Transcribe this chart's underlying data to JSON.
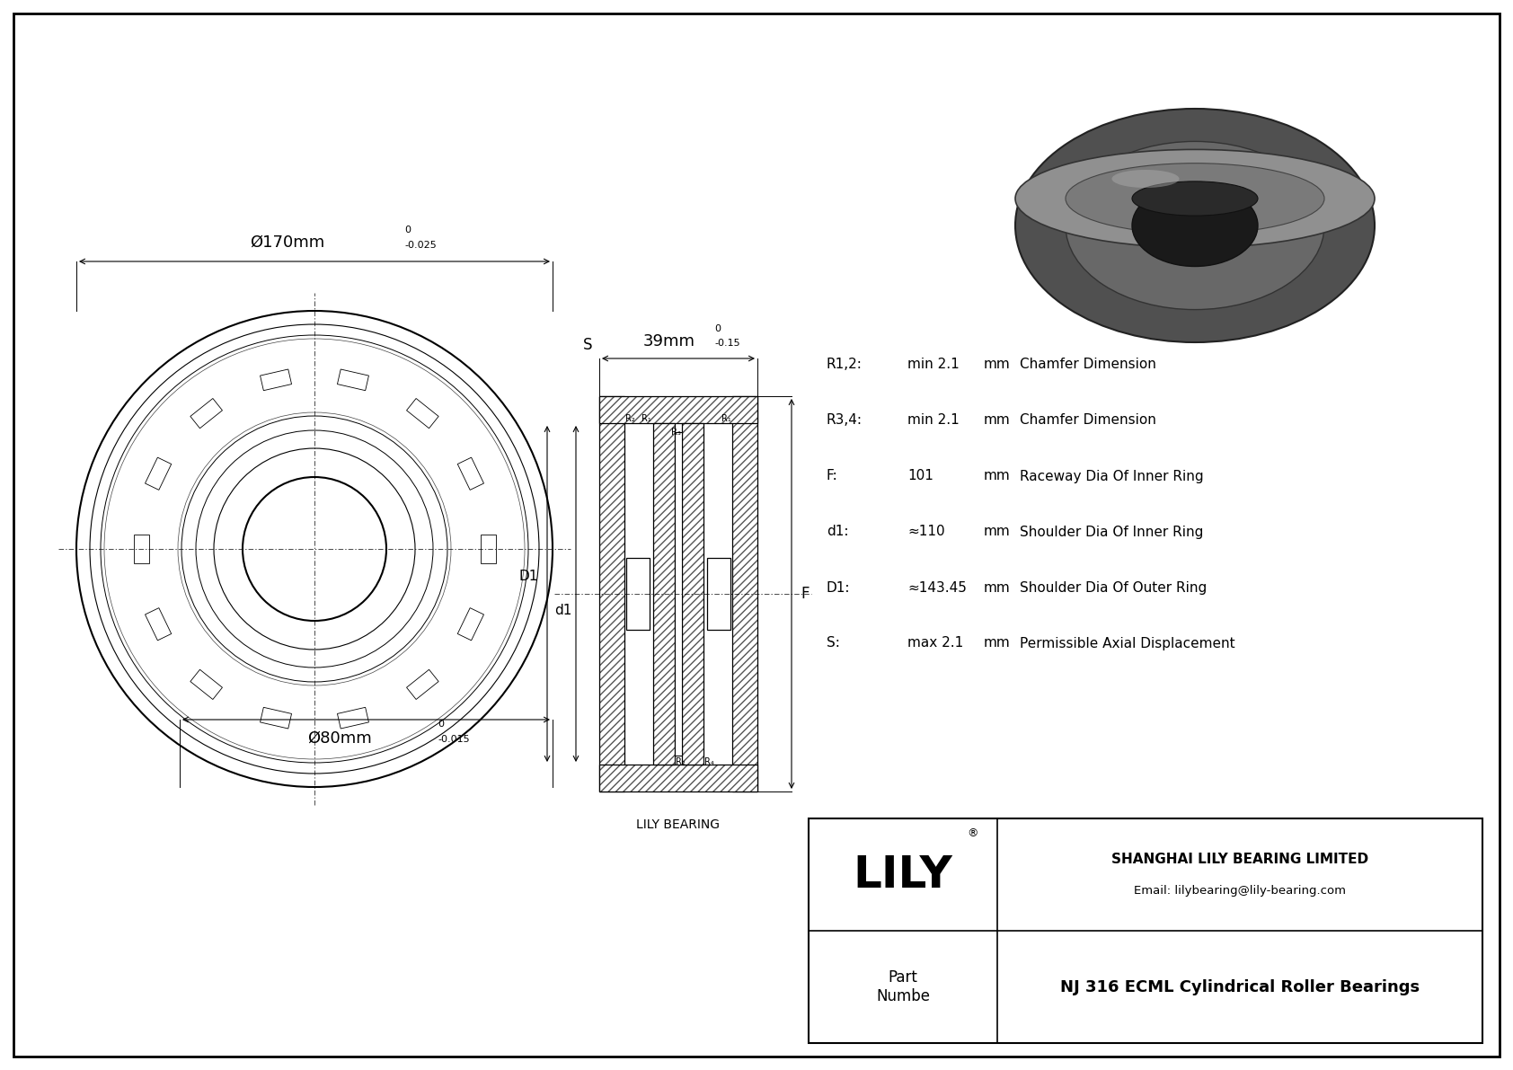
{
  "bg_color": "#ffffff",
  "border_color": "#000000",
  "drawing_color": "#000000",
  "dim_color": "#000000",
  "outer_diam_label": "Ø170mm",
  "outer_diam_tol_upper": "0",
  "outer_diam_tol_lower": "-0.025",
  "inner_diam_label": "Ø80mm",
  "inner_diam_tol_upper": "0",
  "inner_diam_tol_lower": "-0.015",
  "width_label": "39mm",
  "width_tol_upper": "0",
  "width_tol_lower": "-0.15",
  "specs": [
    {
      "label": "R1,2:",
      "value": "min 2.1",
      "unit": "mm",
      "desc": "Chamfer Dimension"
    },
    {
      "label": "R3,4:",
      "value": "min 2.1",
      "unit": "mm",
      "desc": "Chamfer Dimension"
    },
    {
      "label": "F:",
      "value": "101",
      "unit": "mm",
      "desc": "Raceway Dia Of Inner Ring"
    },
    {
      "label": "d1:",
      "value": "≈110",
      "unit": "mm",
      "desc": "Shoulder Dia Of Inner Ring"
    },
    {
      "label": "D1:",
      "value": "≈143.45",
      "unit": "mm",
      "desc": "Shoulder Dia Of Outer Ring"
    },
    {
      "label": "S:",
      "value": "max 2.1",
      "unit": "mm",
      "desc": "Permissible Axial Displacement"
    }
  ],
  "company_name": "SHANGHAI LILY BEARING LIMITED",
  "company_email": "Email: lilybearing@lily-bearing.com",
  "part_label": "Part\nNumbe",
  "part_number": "NJ 316 ECML Cylindrical Roller Bearings",
  "lily_label": "LILY",
  "lily_bearing_label": "LILY BEARING"
}
